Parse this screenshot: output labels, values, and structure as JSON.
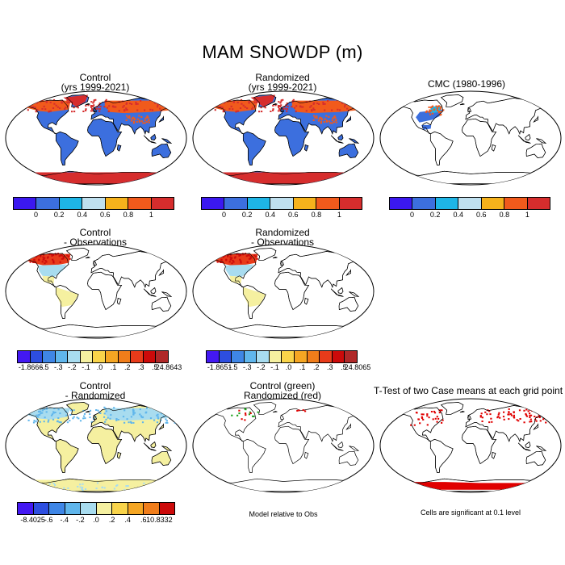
{
  "title": "MAM SNOWDP (m)",
  "colors": {
    "abs": [
      "#3b18f0",
      "#3c6fde",
      "#1eb5e6",
      "#bfe0ef",
      "#f6b21c",
      "#f15a1c",
      "#d62d2d"
    ],
    "diff": [
      "#4318f2",
      "#2d4ee0",
      "#3f86e6",
      "#60b6ec",
      "#a8dcef",
      "#f5f0a0",
      "#f9d44a",
      "#f5a623",
      "#f07d1a",
      "#e83b1a",
      "#cc0a0a",
      "#b02828"
    ]
  },
  "panels": {
    "p1": {
      "line1": "Control",
      "line2": "(yrs 1999-2021)"
    },
    "p2": {
      "line1": "Randomized",
      "line2": "(yrs 1999-2021)"
    },
    "p3": {
      "line1": "CMC (1980-1996)"
    },
    "p4": {
      "line1": "Control",
      "line2": "- Observations"
    },
    "p5": {
      "line1": "Randomized",
      "line2": "- Observations"
    },
    "p6": {
      "line1": "Control",
      "line2": "- Randomized"
    },
    "p7": {
      "line1": "Control (green)",
      "line2": "Randomized (red)"
    },
    "p8": {
      "line1": "T-Test of two Case means at each grid point"
    }
  },
  "colorbars": {
    "abs": {
      "labels": [
        "0",
        "0.2",
        "0.4",
        "0.6",
        "0.8",
        "1"
      ]
    },
    "cb4": {
      "labels": [
        "-1.8666",
        "-.5",
        "-.3",
        "-.2",
        "-.1",
        ".0",
        ".1",
        ".2",
        ".3",
        ".5",
        "24.8643"
      ]
    },
    "cb5": {
      "labels": [
        "-1.8651",
        "-.5",
        "-.3",
        "-.2",
        "-.1",
        ".0",
        ".1",
        ".2",
        ".3",
        ".5",
        "24.8065"
      ]
    },
    "cb6": {
      "labels": [
        "-8.4025",
        "-.6",
        "-.4",
        "-.2",
        ".0",
        ".2",
        ".4",
        ".6",
        "10.8332"
      ]
    }
  },
  "notes": {
    "model_relative": "Model relative to Obs",
    "significance": "Cells are significant at 0.1 level"
  }
}
